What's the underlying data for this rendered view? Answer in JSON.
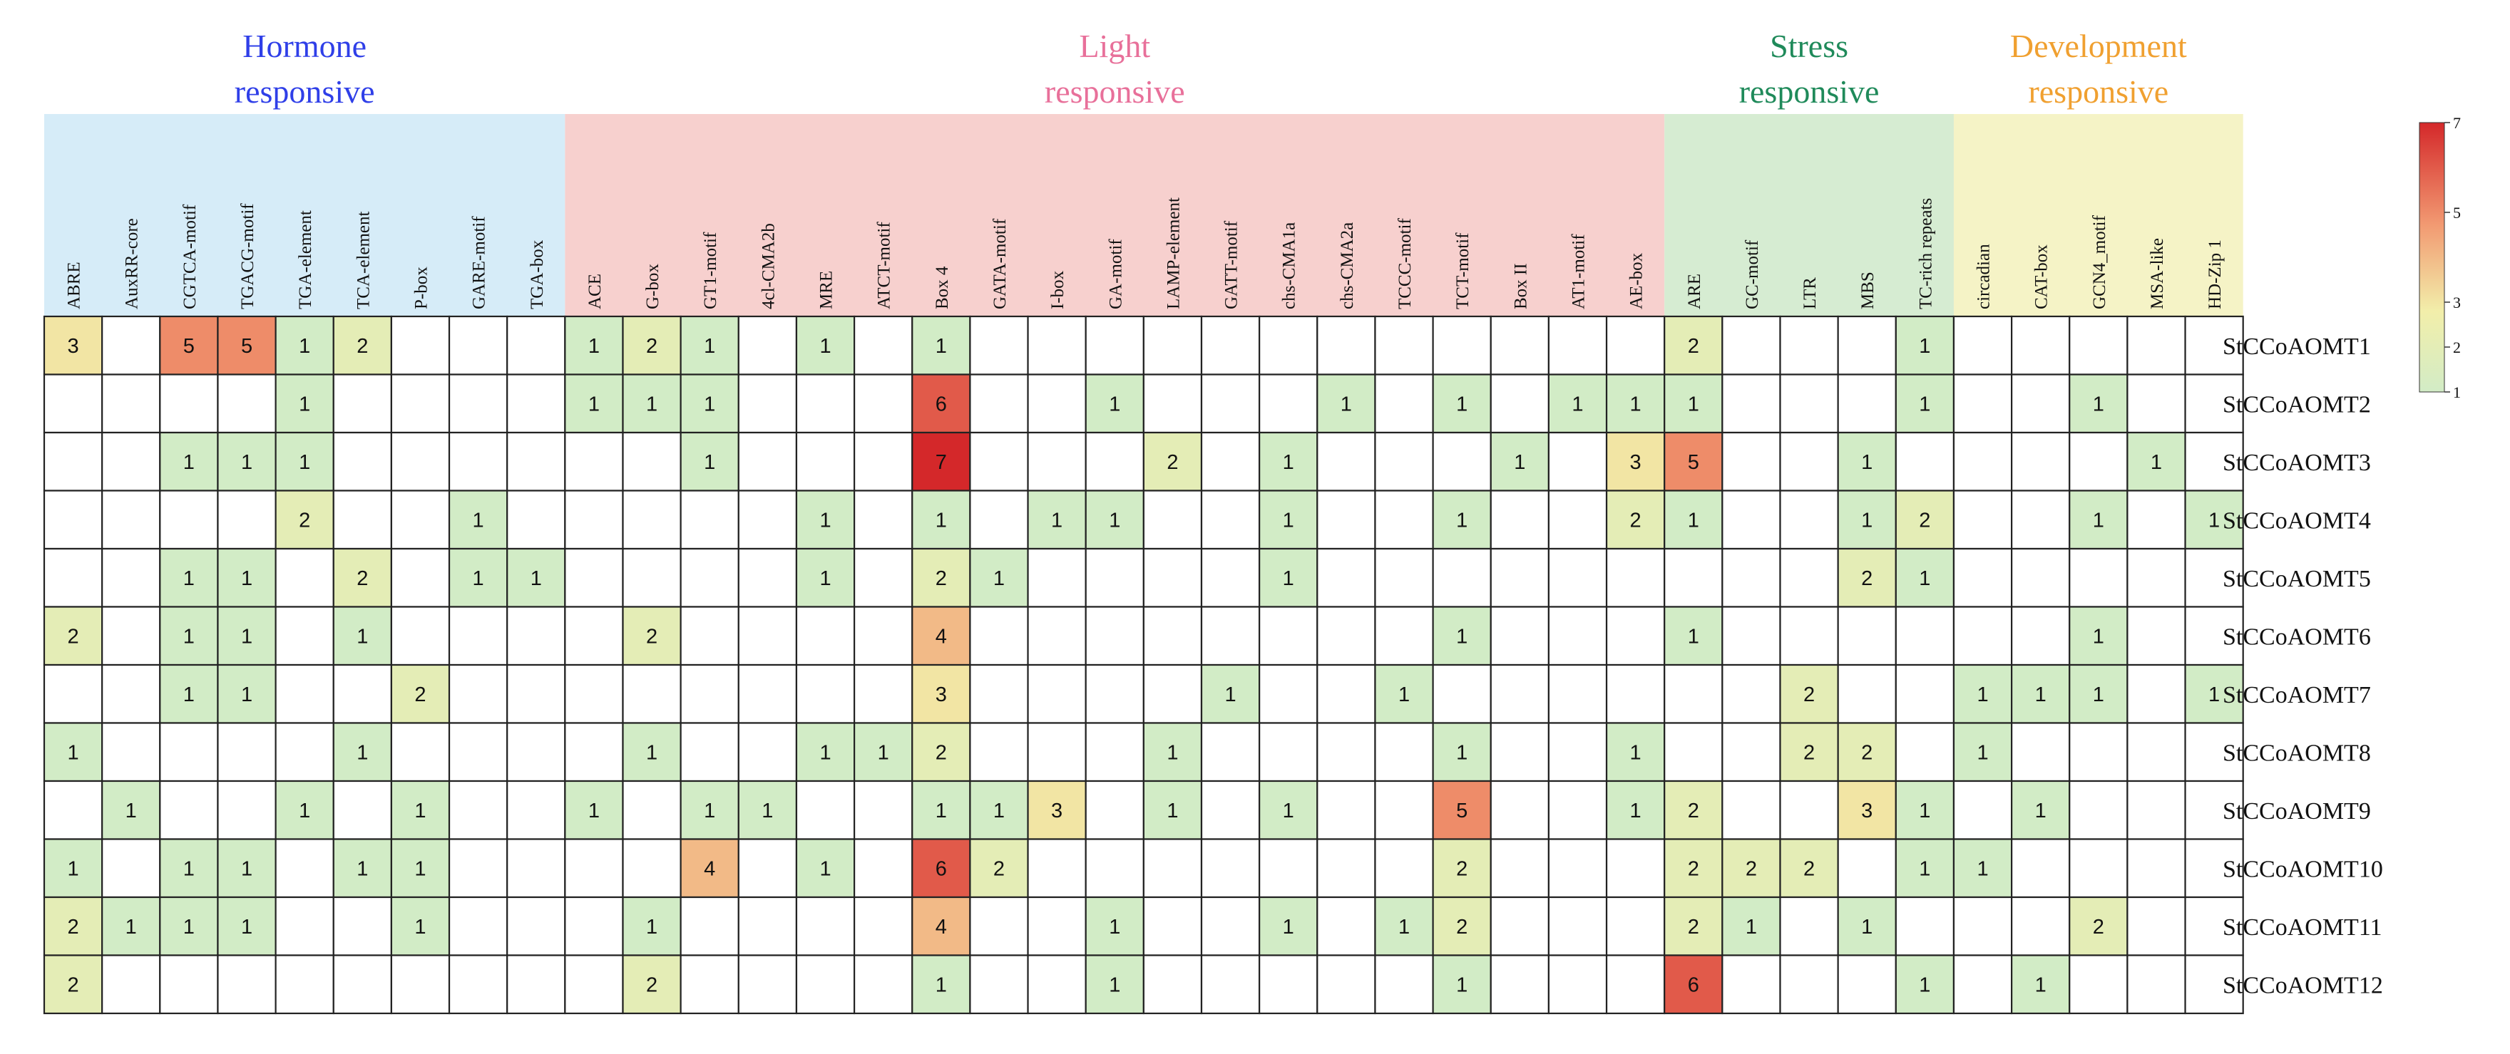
{
  "chart_data": {
    "type": "heatmap",
    "title": "",
    "groups": [
      {
        "name_line1": "Hormone",
        "name_line2": "responsive",
        "text_color": "#2f3fe8",
        "band_color": "#d6ecf8",
        "count": 9
      },
      {
        "name_line1": "Light",
        "name_line2": "responsive",
        "text_color": "#e8709a",
        "band_color": "#f7d0ce",
        "count": 19
      },
      {
        "name_line1": "Stress",
        "name_line2": "responsive",
        "text_color": "#1f8a5a",
        "band_color": "#d6ecd2",
        "count": 5
      },
      {
        "name_line1": "Development",
        "name_line2": "responsive",
        "text_color": "#f0a030",
        "band_color": "#f5f3c6",
        "count": 5
      }
    ],
    "columns": [
      "ABRE",
      "AuxRR-core",
      "CGTCA-motif",
      "TGACG-motif",
      "TGA-element",
      "TCA-element",
      "P-box",
      "GARE-motif",
      "TGA-box",
      "ACE",
      "G-box",
      "GT1-motif",
      "4cl-CMA2b",
      "MRE",
      "ATCT-motif",
      "Box 4",
      "GATA-motif",
      "I-box",
      "GA-motif",
      "LAMP-element",
      "GATT-motif",
      "chs-CMA1a",
      "chs-CMA2a",
      "TCCC-motif",
      "TCT-motif",
      "Box II",
      "AT1-motif",
      "AE-box",
      "ARE",
      "GC-motif",
      "LTR",
      "MBS",
      "TC-rich repeats",
      "circadian",
      "CAT-box",
      "GCN4_motif",
      "MSA-like",
      "HD-Zip 1"
    ],
    "rows": [
      "StCCoAOMT1",
      "StCCoAOMT2",
      "StCCoAOMT3",
      "StCCoAOMT4",
      "StCCoAOMT5",
      "StCCoAOMT6",
      "StCCoAOMT7",
      "StCCoAOMT8",
      "StCCoAOMT9",
      "StCCoAOMT10",
      "StCCoAOMT11",
      "StCCoAOMT12"
    ],
    "values": [
      [
        3,
        0,
        5,
        5,
        1,
        2,
        0,
        0,
        0,
        1,
        2,
        1,
        0,
        1,
        0,
        1,
        0,
        0,
        0,
        0,
        0,
        0,
        0,
        0,
        0,
        0,
        0,
        0,
        2,
        0,
        0,
        0,
        1,
        0,
        0,
        0,
        0,
        0
      ],
      [
        0,
        0,
        0,
        0,
        1,
        0,
        0,
        0,
        0,
        1,
        1,
        1,
        0,
        0,
        0,
        6,
        0,
        0,
        1,
        0,
        0,
        0,
        1,
        0,
        1,
        0,
        1,
        1,
        1,
        0,
        0,
        0,
        1,
        0,
        0,
        1,
        0,
        0
      ],
      [
        0,
        0,
        1,
        1,
        1,
        0,
        0,
        0,
        0,
        0,
        0,
        1,
        0,
        0,
        0,
        7,
        0,
        0,
        0,
        2,
        0,
        1,
        0,
        0,
        0,
        1,
        0,
        3,
        5,
        0,
        0,
        1,
        0,
        0,
        0,
        0,
        1,
        0
      ],
      [
        0,
        0,
        0,
        0,
        2,
        0,
        0,
        1,
        0,
        0,
        0,
        0,
        0,
        1,
        0,
        1,
        0,
        1,
        1,
        0,
        0,
        1,
        0,
        0,
        1,
        0,
        0,
        2,
        1,
        0,
        0,
        1,
        2,
        0,
        0,
        1,
        0,
        1
      ],
      [
        0,
        0,
        1,
        1,
        0,
        2,
        0,
        1,
        1,
        0,
        0,
        0,
        0,
        1,
        0,
        2,
        1,
        0,
        0,
        0,
        0,
        1,
        0,
        0,
        0,
        0,
        0,
        0,
        0,
        0,
        0,
        2,
        1,
        0,
        0,
        0,
        0,
        0
      ],
      [
        2,
        0,
        1,
        1,
        0,
        1,
        0,
        0,
        0,
        0,
        2,
        0,
        0,
        0,
        0,
        4,
        0,
        0,
        0,
        0,
        0,
        0,
        0,
        0,
        1,
        0,
        0,
        0,
        1,
        0,
        0,
        0,
        0,
        0,
        0,
        1,
        0,
        0
      ],
      [
        0,
        0,
        1,
        1,
        0,
        0,
        2,
        0,
        0,
        0,
        0,
        0,
        0,
        0,
        0,
        3,
        0,
        0,
        0,
        0,
        1,
        0,
        0,
        1,
        0,
        0,
        0,
        0,
        0,
        0,
        2,
        0,
        0,
        1,
        1,
        1,
        0,
        1
      ],
      [
        1,
        0,
        0,
        0,
        0,
        1,
        0,
        0,
        0,
        0,
        1,
        0,
        0,
        1,
        1,
        2,
        0,
        0,
        0,
        1,
        0,
        0,
        0,
        0,
        1,
        0,
        0,
        1,
        0,
        0,
        2,
        2,
        0,
        1,
        0,
        0,
        0,
        0
      ],
      [
        0,
        1,
        0,
        0,
        1,
        0,
        1,
        0,
        0,
        1,
        0,
        1,
        1,
        0,
        0,
        1,
        1,
        3,
        0,
        1,
        0,
        1,
        0,
        0,
        5,
        0,
        0,
        1,
        2,
        0,
        0,
        3,
        1,
        0,
        1,
        0,
        0,
        0
      ],
      [
        1,
        0,
        1,
        1,
        0,
        1,
        1,
        0,
        0,
        0,
        0,
        4,
        0,
        1,
        0,
        6,
        2,
        0,
        0,
        0,
        0,
        0,
        0,
        0,
        2,
        0,
        0,
        0,
        2,
        2,
        2,
        0,
        1,
        1,
        0,
        0,
        0,
        0
      ],
      [
        2,
        1,
        1,
        1,
        0,
        0,
        1,
        0,
        0,
        0,
        1,
        0,
        0,
        0,
        0,
        4,
        0,
        0,
        1,
        0,
        0,
        1,
        0,
        1,
        2,
        0,
        0,
        0,
        2,
        1,
        0,
        1,
        0,
        0,
        0,
        2,
        0,
        0
      ],
      [
        2,
        0,
        0,
        0,
        0,
        0,
        0,
        0,
        0,
        0,
        2,
        0,
        0,
        0,
        0,
        1,
        0,
        0,
        1,
        0,
        0,
        0,
        0,
        0,
        1,
        0,
        0,
        0,
        6,
        0,
        0,
        0,
        1,
        0,
        1,
        0,
        0,
        0
      ]
    ],
    "colorscale": {
      "min": 1,
      "max": 7,
      "colors": [
        "#d2ecc6",
        "#f2eeaa",
        "#f29a72",
        "#d4282a"
      ]
    },
    "legend_ticks": [
      "7",
      "5",
      "3",
      "2",
      "1"
    ],
    "legend_position": "top-right"
  }
}
